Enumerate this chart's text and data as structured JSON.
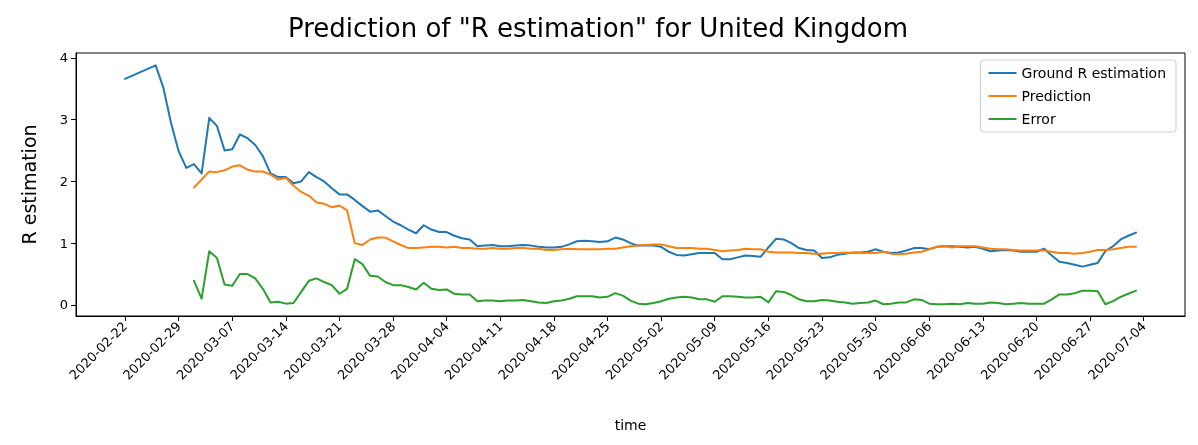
{
  "chart_data": {
    "type": "line",
    "title": "Prediction of \"R estimation\" for United Kingdom",
    "xlabel": "time",
    "ylabel": "R estimation",
    "x": [
      "2020-02-22",
      "2020-02-26",
      "2020-02-27",
      "2020-02-28",
      "2020-02-29",
      "2020-03-01",
      "2020-03-02",
      "2020-03-03",
      "2020-03-04",
      "2020-03-05",
      "2020-03-06",
      "2020-03-07",
      "2020-03-08",
      "2020-03-09",
      "2020-03-10",
      "2020-03-11",
      "2020-03-12",
      "2020-03-13",
      "2020-03-14",
      "2020-03-15",
      "2020-03-16",
      "2020-03-17",
      "2020-03-18",
      "2020-03-19",
      "2020-03-20",
      "2020-03-21",
      "2020-03-22",
      "2020-03-23",
      "2020-03-24",
      "2020-03-25",
      "2020-03-26",
      "2020-03-27",
      "2020-03-28",
      "2020-03-29",
      "2020-03-30",
      "2020-03-31",
      "2020-04-01",
      "2020-04-02",
      "2020-04-03",
      "2020-04-04",
      "2020-04-05",
      "2020-04-06",
      "2020-04-07",
      "2020-04-08",
      "2020-04-09",
      "2020-04-10",
      "2020-04-11",
      "2020-04-12",
      "2020-04-13",
      "2020-04-14",
      "2020-04-15",
      "2020-04-16",
      "2020-04-17",
      "2020-04-18",
      "2020-04-19",
      "2020-04-20",
      "2020-04-21",
      "2020-04-22",
      "2020-04-23",
      "2020-04-24",
      "2020-04-25",
      "2020-04-26",
      "2020-04-27",
      "2020-04-28",
      "2020-04-29",
      "2020-04-30",
      "2020-05-01",
      "2020-05-02",
      "2020-05-03",
      "2020-05-04",
      "2020-05-05",
      "2020-05-06",
      "2020-05-07",
      "2020-05-08",
      "2020-05-09",
      "2020-05-10",
      "2020-05-11",
      "2020-05-12",
      "2020-05-13",
      "2020-05-14",
      "2020-05-15",
      "2020-05-16",
      "2020-05-17",
      "2020-05-18",
      "2020-05-19",
      "2020-05-20",
      "2020-05-21",
      "2020-05-22",
      "2020-05-23",
      "2020-05-24",
      "2020-05-25",
      "2020-05-26",
      "2020-05-27",
      "2020-05-28",
      "2020-05-29",
      "2020-05-30",
      "2020-05-31",
      "2020-06-01",
      "2020-06-02",
      "2020-06-03",
      "2020-06-04",
      "2020-06-05",
      "2020-06-06",
      "2020-06-07",
      "2020-06-08",
      "2020-06-09",
      "2020-06-10",
      "2020-06-11",
      "2020-06-12",
      "2020-06-13",
      "2020-06-14",
      "2020-06-15",
      "2020-06-16",
      "2020-06-17",
      "2020-06-18",
      "2020-06-19",
      "2020-06-20",
      "2020-06-21",
      "2020-06-22",
      "2020-06-23",
      "2020-06-24",
      "2020-06-25",
      "2020-06-26",
      "2020-06-27",
      "2020-06-28",
      "2020-06-29",
      "2020-06-30",
      "2020-07-01",
      "2020-07-02",
      "2020-07-03"
    ],
    "series": [
      {
        "name": "Ground R estimation",
        "color": "#1f77b4",
        "values": [
          3.66,
          3.88,
          3.52,
          2.95,
          2.49,
          2.22,
          2.28,
          2.13,
          3.03,
          2.9,
          2.5,
          2.52,
          2.76,
          2.7,
          2.59,
          2.41,
          2.13,
          2.07,
          2.07,
          1.97,
          2.0,
          2.15,
          2.07,
          2.0,
          1.89,
          1.79,
          1.79,
          1.7,
          1.6,
          1.51,
          1.53,
          1.44,
          1.35,
          1.29,
          1.22,
          1.16,
          1.29,
          1.22,
          1.18,
          1.18,
          1.12,
          1.08,
          1.06,
          0.95,
          0.96,
          0.97,
          0.95,
          0.95,
          0.96,
          0.97,
          0.96,
          0.94,
          0.93,
          0.93,
          0.94,
          0.98,
          1.03,
          1.04,
          1.03,
          1.02,
          1.03,
          1.09,
          1.06,
          1.0,
          0.96,
          0.96,
          0.96,
          0.94,
          0.86,
          0.81,
          0.8,
          0.82,
          0.84,
          0.84,
          0.84,
          0.74,
          0.74,
          0.77,
          0.8,
          0.79,
          0.78,
          0.93,
          1.07,
          1.06,
          1.0,
          0.92,
          0.89,
          0.88,
          0.76,
          0.77,
          0.81,
          0.83,
          0.85,
          0.85,
          0.86,
          0.9,
          0.86,
          0.84,
          0.85,
          0.88,
          0.92,
          0.92,
          0.9,
          0.94,
          0.95,
          0.95,
          0.94,
          0.93,
          0.94,
          0.91,
          0.87,
          0.88,
          0.89,
          0.88,
          0.86,
          0.86,
          0.86,
          0.91,
          0.8,
          0.7,
          0.68,
          0.65,
          0.62,
          0.65,
          0.68,
          0.87,
          0.95,
          1.06,
          1.12,
          1.17
        ]
      },
      {
        "name": "Prediction",
        "color": "#ff7f0e",
        "values": [
          null,
          null,
          null,
          null,
          null,
          null,
          1.9,
          2.03,
          2.16,
          2.15,
          2.18,
          2.24,
          2.26,
          2.19,
          2.16,
          2.16,
          2.11,
          2.03,
          2.06,
          1.93,
          1.83,
          1.77,
          1.66,
          1.64,
          1.58,
          1.61,
          1.53,
          1.0,
          0.97,
          1.06,
          1.09,
          1.09,
          1.03,
          0.97,
          0.92,
          0.92,
          0.93,
          0.94,
          0.94,
          0.93,
          0.94,
          0.92,
          0.92,
          0.91,
          0.91,
          0.92,
          0.91,
          0.91,
          0.92,
          0.92,
          0.91,
          0.91,
          0.89,
          0.89,
          0.9,
          0.91,
          0.9,
          0.9,
          0.9,
          0.9,
          0.91,
          0.91,
          0.93,
          0.95,
          0.96,
          0.97,
          0.98,
          0.98,
          0.95,
          0.92,
          0.92,
          0.92,
          0.91,
          0.91,
          0.89,
          0.87,
          0.88,
          0.89,
          0.91,
          0.9,
          0.9,
          0.86,
          0.85,
          0.85,
          0.85,
          0.84,
          0.84,
          0.83,
          0.83,
          0.84,
          0.84,
          0.85,
          0.84,
          0.84,
          0.84,
          0.84,
          0.86,
          0.83,
          0.82,
          0.83,
          0.85,
          0.86,
          0.9,
          0.94,
          0.95,
          0.93,
          0.95,
          0.95,
          0.95,
          0.93,
          0.91,
          0.9,
          0.9,
          0.89,
          0.88,
          0.88,
          0.88,
          0.88,
          0.86,
          0.84,
          0.84,
          0.83,
          0.84,
          0.86,
          0.89,
          0.89,
          0.9,
          0.92,
          0.94,
          0.94
        ]
      },
      {
        "name": "Error",
        "color": "#2ca02c",
        "values": [
          null,
          null,
          null,
          null,
          null,
          null,
          0.39,
          0.1,
          0.87,
          0.76,
          0.33,
          0.31,
          0.5,
          0.5,
          0.43,
          0.26,
          0.04,
          0.05,
          0.02,
          0.03,
          0.21,
          0.39,
          0.43,
          0.37,
          0.32,
          0.18,
          0.26,
          0.74,
          0.66,
          0.47,
          0.46,
          0.37,
          0.32,
          0.32,
          0.29,
          0.25,
          0.36,
          0.26,
          0.24,
          0.25,
          0.18,
          0.17,
          0.17,
          0.06,
          0.07,
          0.07,
          0.06,
          0.07,
          0.07,
          0.08,
          0.06,
          0.04,
          0.03,
          0.06,
          0.07,
          0.1,
          0.14,
          0.14,
          0.14,
          0.12,
          0.13,
          0.19,
          0.15,
          0.07,
          0.02,
          0.01,
          0.03,
          0.06,
          0.1,
          0.12,
          0.13,
          0.12,
          0.09,
          0.09,
          0.05,
          0.14,
          0.14,
          0.13,
          0.12,
          0.12,
          0.13,
          0.04,
          0.22,
          0.21,
          0.16,
          0.09,
          0.06,
          0.06,
          0.08,
          0.07,
          0.05,
          0.04,
          0.02,
          0.03,
          0.04,
          0.07,
          0.01,
          0.02,
          0.04,
          0.04,
          0.09,
          0.08,
          0.02,
          0.01,
          0.01,
          0.02,
          0.01,
          0.03,
          0.02,
          0.02,
          0.04,
          0.03,
          0.01,
          0.02,
          0.03,
          0.02,
          0.02,
          0.02,
          0.09,
          0.17,
          0.17,
          0.19,
          0.23,
          0.23,
          0.22,
          0.01,
          0.06,
          0.13,
          0.18,
          0.23
        ]
      }
    ],
    "xlim": [
      "2020-02-15T14:24",
      "2020-07-09T09:36"
    ],
    "xticks": [
      "2020-02-22",
      "2020-02-29",
      "2020-03-07",
      "2020-03-14",
      "2020-03-21",
      "2020-03-28",
      "2020-04-04",
      "2020-04-11",
      "2020-04-18",
      "2020-04-25",
      "2020-05-02",
      "2020-05-09",
      "2020-05-16",
      "2020-05-23",
      "2020-05-30",
      "2020-06-06",
      "2020-06-13",
      "2020-06-20",
      "2020-06-27",
      "2020-07-04"
    ],
    "ylim": [
      -0.18,
      4.08
    ],
    "yticks": [
      0,
      1,
      2,
      3,
      4
    ],
    "grid": false,
    "legend": "top right",
    "marker": "none",
    "line_style": "solid"
  }
}
